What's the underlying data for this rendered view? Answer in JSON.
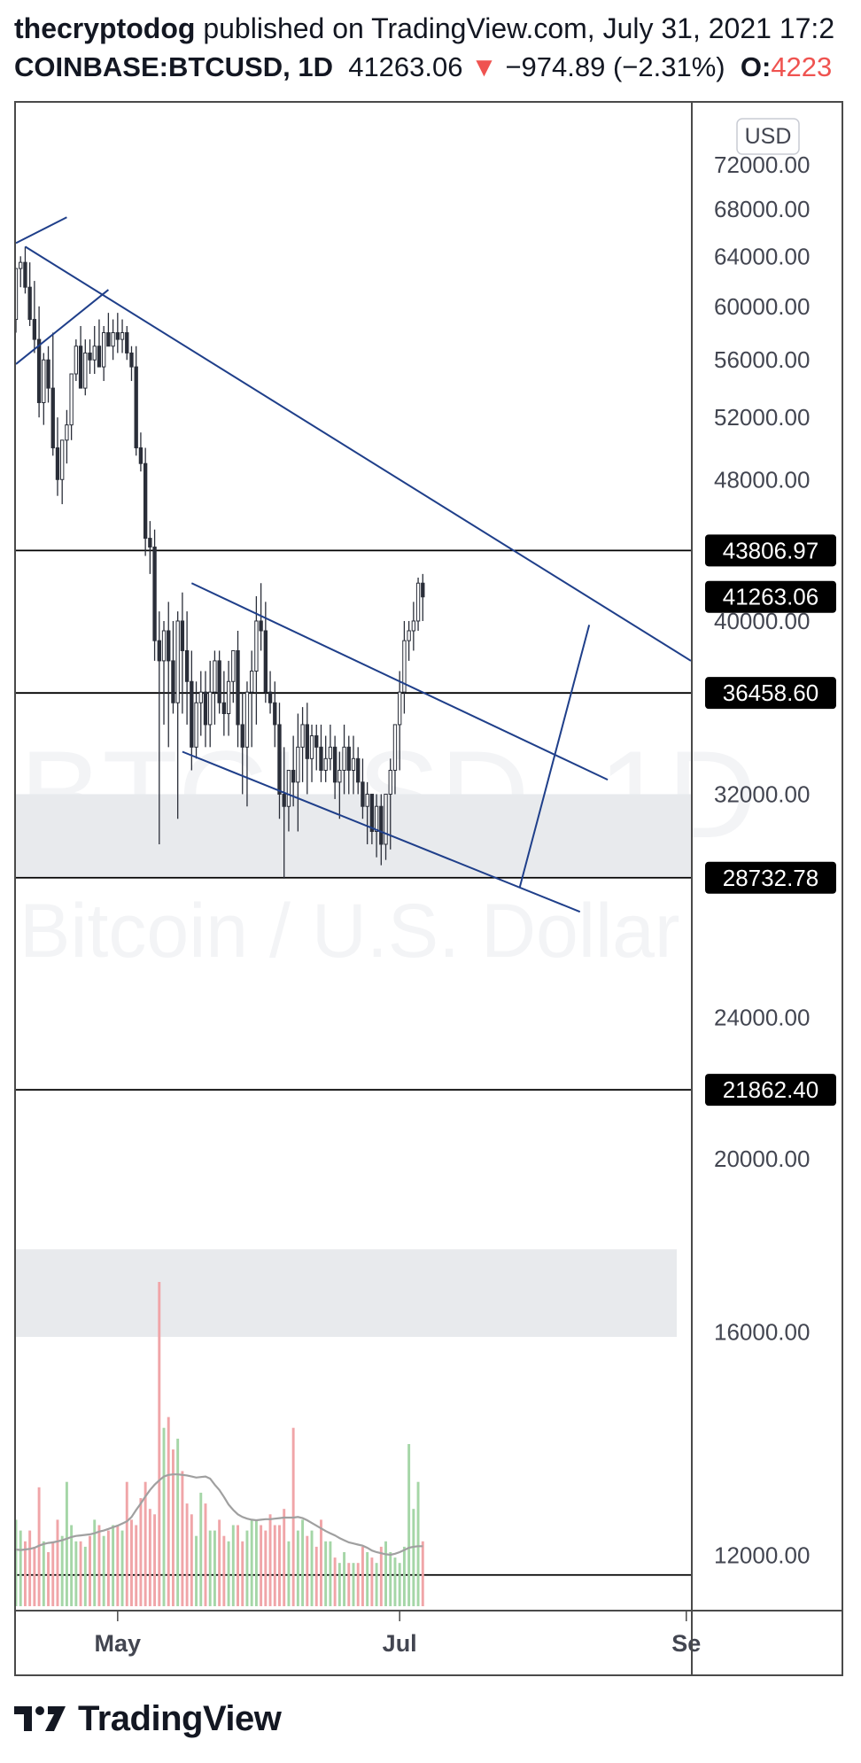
{
  "header": {
    "author": "thecryptodog",
    "published": " published on TradingView.com, July 31, 2021 17:2",
    "symbol": "COINBASE:BTCUSD, 1D",
    "price": "41263.06",
    "arrow": "▼",
    "change": "−974.89 (−2.31%)",
    "open_label": "O:",
    "open_value": "4223"
  },
  "colors": {
    "up": "#26a69a",
    "down": "#ef5350",
    "candle": "#2a2e39",
    "trendline": "#1f3f8a",
    "level": "#000000",
    "zone": "#e8eaed",
    "vol_up": "#a5d6a7",
    "vol_down": "#f0a5a8",
    "vol_ma": "#a0a0a0"
  },
  "chart_data": {
    "type": "candlestick",
    "symbol": "COINBASE:BTCUSD",
    "interval": "1D",
    "currency_button": "USD",
    "watermark": [
      "BTCUSD, 1D",
      "Bitcoin / U.S. Dollar"
    ],
    "y_scale": "log",
    "ylim": [
      11200,
      78000
    ],
    "y_ticks": [
      "72000.00",
      "68000.00",
      "64000.00",
      "60000.00",
      "56000.00",
      "52000.00",
      "48000.00",
      "40000.00",
      "32000.00",
      "24000.00",
      "20000.00",
      "16000.00",
      "12000.00"
    ],
    "x_ticks": [
      {
        "label": "May",
        "day": 0
      },
      {
        "label": "Jul",
        "day": 61
      },
      {
        "label": "Se",
        "day": 123
      }
    ],
    "xlim": [
      -22,
      124
    ],
    "price_levels": [
      {
        "label": "43806.97",
        "value": 43806.97,
        "type": "horizontal-line"
      },
      {
        "label": "41263.06",
        "value": 41263.06,
        "type": "last-price"
      },
      {
        "label": "36458.60",
        "value": 36458.6,
        "type": "horizontal-line"
      },
      {
        "label": "28732.78",
        "value": 28732.78,
        "type": "horizontal-line"
      },
      {
        "label": "21862.40",
        "value": 21862.4,
        "type": "horizontal-line"
      }
    ],
    "zones": [
      {
        "from": 28732.78,
        "to": 32000
      },
      {
        "from": 15900,
        "to": 17800
      }
    ],
    "bottom_line": 11700,
    "trendlines": [
      {
        "from": [
          -22,
          65100
        ],
        "to": [
          -11,
          67300
        ]
      },
      {
        "from": [
          -22,
          55700
        ],
        "to": [
          -2,
          61300
        ]
      },
      {
        "from": [
          -20,
          64800
        ],
        "to": [
          124,
          38000
        ]
      },
      {
        "from": [
          16,
          42000
        ],
        "to": [
          106,
          32600
        ]
      },
      {
        "from": [
          14,
          33800
        ],
        "to": [
          100,
          27500
        ]
      },
      {
        "from": [
          87,
          28400
        ],
        "to": [
          102,
          39800
        ]
      }
    ],
    "candles": {
      "start_day": -22,
      "opens": [
        59000,
        63000,
        63500,
        61500,
        59000,
        57500,
        53000,
        56000,
        54000,
        50000,
        48000,
        50500,
        51500,
        55000,
        57000,
        54000,
        56500,
        56000,
        57000,
        55500,
        58000,
        57000,
        58000,
        57500,
        58000,
        56500,
        55500,
        50000,
        49000,
        44500,
        44000,
        39000,
        38000,
        39500,
        38000,
        36000,
        40000,
        38500,
        37000,
        34000,
        36000,
        36500,
        35000,
        36500,
        38000,
        36000,
        35500,
        37000,
        38500,
        35000,
        34000,
        36500,
        37500,
        40000,
        39500,
        36500,
        36000,
        35000,
        32000,
        31500,
        33000,
        32500,
        34000,
        35000,
        33500,
        34500,
        34000,
        33000,
        33500,
        34000,
        32500,
        33000,
        34000,
        33000,
        33500,
        32500,
        31500,
        32000,
        30500,
        31500,
        30000,
        32000,
        33000,
        35000,
        36500,
        39000,
        39500,
        40000,
        42000
      ],
      "highs": [
        61000,
        64000,
        64800,
        63500,
        62000,
        60000,
        56500,
        57000,
        58000,
        52000,
        50500,
        52500,
        55000,
        57500,
        58500,
        57500,
        57500,
        58500,
        59000,
        58500,
        59500,
        59000,
        59500,
        59000,
        58500,
        57000,
        57000,
        51000,
        50000,
        45500,
        45000,
        40500,
        40000,
        41000,
        40000,
        40500,
        41500,
        40500,
        38500,
        37000,
        37500,
        37500,
        38000,
        38500,
        38500,
        37500,
        38000,
        38500,
        39500,
        36500,
        37000,
        38500,
        41300,
        42000,
        41000,
        37500,
        37000,
        36000,
        34000,
        33000,
        34500,
        35500,
        35800,
        36000,
        35000,
        35000,
        35000,
        34500,
        35000,
        34500,
        33800,
        35000,
        34500,
        34500,
        34000,
        33500,
        32500,
        32000,
        32000,
        32000,
        32000,
        33500,
        35000,
        37500,
        40000,
        40000,
        41000,
        42300,
        42500
      ],
      "lows": [
        58000,
        61500,
        61000,
        58500,
        56500,
        52000,
        51500,
        53000,
        49500,
        47000,
        46500,
        49000,
        50500,
        54500,
        55000,
        53500,
        55000,
        55000,
        55500,
        54500,
        57000,
        56000,
        56500,
        56500,
        56000,
        54500,
        49500,
        48500,
        43500,
        42500,
        38000,
        30000,
        35000,
        34000,
        35500,
        31000,
        35500,
        35000,
        33000,
        33500,
        34500,
        34000,
        34000,
        35000,
        35500,
        34500,
        34500,
        36000,
        34000,
        32000,
        31500,
        34000,
        35000,
        38500,
        36000,
        35500,
        34000,
        31000,
        28700,
        30500,
        31500,
        30500,
        32500,
        32000,
        32500,
        33000,
        32500,
        32500,
        33000,
        31800,
        31000,
        32000,
        32000,
        32000,
        32000,
        31000,
        30000,
        30000,
        29500,
        29200,
        29400,
        29800,
        32000,
        33000,
        35500,
        38000,
        38500,
        39500,
        40000
      ],
      "closes": [
        63000,
        63500,
        61500,
        59000,
        57500,
        53000,
        56000,
        54000,
        50000,
        48000,
        50500,
        51500,
        55000,
        57000,
        54000,
        56500,
        56000,
        57000,
        55500,
        58000,
        57000,
        58000,
        57500,
        58000,
        56500,
        55500,
        50000,
        49000,
        44500,
        44000,
        39000,
        38000,
        39500,
        38000,
        36000,
        40000,
        38500,
        37000,
        34000,
        36000,
        36500,
        35000,
        36500,
        38000,
        36000,
        35500,
        37000,
        38500,
        35000,
        34000,
        36500,
        37500,
        40000,
        39500,
        36500,
        36000,
        35000,
        32000,
        31500,
        33000,
        32500,
        34000,
        35000,
        33500,
        34500,
        34000,
        33000,
        33500,
        34000,
        32500,
        33000,
        34000,
        33000,
        33500,
        32500,
        31500,
        32000,
        30500,
        31500,
        30000,
        32000,
        33000,
        35000,
        36500,
        39000,
        39500,
        40000,
        42000,
        41263
      ]
    },
    "volume": [
      16,
      14,
      12,
      14,
      11,
      22,
      12,
      10,
      12,
      16,
      13,
      23,
      15,
      12,
      12,
      11,
      13,
      16,
      15,
      13,
      14,
      15,
      15,
      14,
      23,
      16,
      15,
      20,
      23,
      18,
      17,
      60,
      33,
      35,
      29,
      31,
      25,
      19,
      17,
      13,
      21,
      19,
      14,
      14,
      16,
      13,
      12,
      15,
      15,
      12,
      14,
      16,
      16,
      15,
      14,
      17,
      15,
      15,
      18,
      12,
      33,
      14,
      16,
      13,
      14,
      11,
      16,
      12,
      12,
      9,
      8,
      10,
      8,
      8,
      8,
      11,
      10,
      9,
      8,
      11,
      12,
      10,
      9,
      8,
      11,
      30,
      18,
      23,
      12
    ],
    "volume_ma": [
      10.5,
      10.4,
      10.5,
      10.6,
      10.8,
      11.2,
      11.5,
      11.7,
      11.8,
      12.0,
      12.2,
      12.5,
      12.8,
      13.0,
      13.1,
      13.2,
      13.3,
      13.5,
      13.8,
      14.0,
      14.3,
      14.6,
      14.9,
      15.3,
      15.7,
      16.5,
      17.8,
      19.0,
      20.3,
      21.5,
      22.5,
      23.3,
      24.0,
      24.3,
      24.4,
      24.4,
      24.3,
      24.2,
      24.0,
      23.8,
      23.9,
      24.0,
      23.6,
      22.5,
      21.5,
      20.2,
      18.8,
      17.8,
      17.0,
      16.5,
      16.2,
      16.0,
      15.9,
      16.0,
      16.1,
      16.1,
      16.2,
      16.3,
      16.4,
      16.4,
      16.4,
      16.5,
      16.3,
      15.9,
      15.4,
      14.9,
      14.4,
      13.9,
      13.5,
      13.1,
      12.6,
      12.2,
      11.8,
      11.6,
      11.4,
      11.2,
      10.8,
      10.3,
      10.0,
      9.8,
      9.6,
      9.5,
      9.7,
      10.0,
      10.4,
      10.8,
      11.0,
      11.1,
      11.1
    ]
  },
  "logo": {
    "text": "TradingView"
  }
}
